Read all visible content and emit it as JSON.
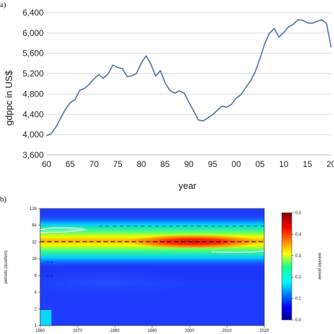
{
  "panel_a_label": "a)",
  "panel_b_label": "b)",
  "chart_data": [
    {
      "type": "line",
      "title": "",
      "xlabel": "year",
      "ylabel": "gdppc in US$",
      "xlim": [
        1960,
        2020
      ],
      "ylim": [
        3600,
        6400
      ],
      "grid": "horizontal",
      "x_tick_labels": [
        "60",
        "65",
        "70",
        "75",
        "80",
        "85",
        "90",
        "95",
        "00",
        "05",
        "10",
        "15",
        "20"
      ],
      "y_tick_labels": [
        "3,600",
        "4,000",
        "4,400",
        "4,800",
        "5,200",
        "5,600",
        "6,000",
        "6,400"
      ],
      "line_color": "#4a6fa8",
      "x": [
        1960,
        1961,
        1962,
        1963,
        1964,
        1965,
        1966,
        1967,
        1968,
        1969,
        1970,
        1971,
        1972,
        1973,
        1974,
        1975,
        1976,
        1977,
        1978,
        1979,
        1980,
        1981,
        1982,
        1983,
        1984,
        1985,
        1986,
        1987,
        1988,
        1989,
        1990,
        1991,
        1992,
        1993,
        1994,
        1995,
        1996,
        1997,
        1998,
        1999,
        2000,
        2001,
        2002,
        2003,
        2004,
        2005,
        2006,
        2007,
        2008,
        2009,
        2010,
        2011,
        2012,
        2013,
        2014,
        2015,
        2016,
        2017,
        2018,
        2019,
        2020
      ],
      "values": [
        3980,
        4020,
        4150,
        4330,
        4500,
        4630,
        4690,
        4870,
        4910,
        4990,
        5100,
        5180,
        5110,
        5200,
        5370,
        5320,
        5300,
        5140,
        5160,
        5210,
        5420,
        5550,
        5390,
        5150,
        5260,
        5020,
        4870,
        4820,
        4860,
        4820,
        4640,
        4470,
        4290,
        4270,
        4330,
        4390,
        4480,
        4560,
        4540,
        4600,
        4720,
        4790,
        4930,
        5060,
        5240,
        5500,
        5790,
        6000,
        6090,
        5920,
        6010,
        6120,
        6170,
        6260,
        6250,
        6200,
        6190,
        6230,
        6260,
        6190,
        5720
      ]
    },
    {
      "type": "heatmap",
      "title": "",
      "xlabel": "",
      "ylabel": "periods (quarters)",
      "colorbar_label": "wavelet power",
      "xlim": [
        1960,
        2020
      ],
      "x_tick_labels": [
        "1960",
        "1970",
        "1980",
        "1990",
        "2000",
        "2010",
        "2020"
      ],
      "y_tick_labels": [
        "1",
        "2",
        "4",
        "8",
        "16",
        "32",
        "64",
        "128"
      ],
      "colorbar_ticks": [
        "0.0",
        "0.1",
        "0.2",
        "0.3",
        "0.4",
        "0.5"
      ],
      "colorbar_range": [
        0,
        0.5
      ],
      "peak_period_quarters": 32,
      "peak_power": 0.5,
      "peak_year_range": [
        1990,
        2005
      ]
    }
  ]
}
